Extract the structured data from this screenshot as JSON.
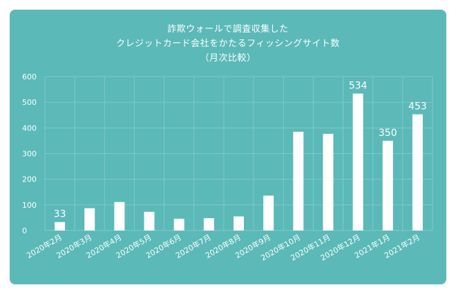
{
  "title_lines": [
    "詐欺ウォールで調査収集した",
    "クレジットカード会社をかたるフィッシングサイト数",
    "（月次比較）"
  ],
  "colors": {
    "background": "#5bb9b8",
    "bar": "#ffffff",
    "grid": "#7fcac9",
    "text": "#ffffff"
  },
  "chart_data": {
    "type": "bar",
    "categories": [
      "2020年2月",
      "2020年3月",
      "2020年4月",
      "2020年5月",
      "2020年6月",
      "2020年7月",
      "2020年8月",
      "2020年9月",
      "2020年10月",
      "2020年11月",
      "2020年12月",
      "2021年1月",
      "2021年2月"
    ],
    "values": [
      33,
      87,
      111,
      73,
      46,
      48,
      55,
      136,
      385,
      377,
      534,
      350,
      453
    ],
    "data_labels": {
      "0": "33",
      "10": "534",
      "11": "350",
      "12": "453"
    },
    "ylim": [
      0,
      600
    ],
    "yticks": [
      0,
      100,
      200,
      300,
      400,
      500,
      600
    ],
    "grid": true,
    "xlabel": "",
    "ylabel": ""
  }
}
